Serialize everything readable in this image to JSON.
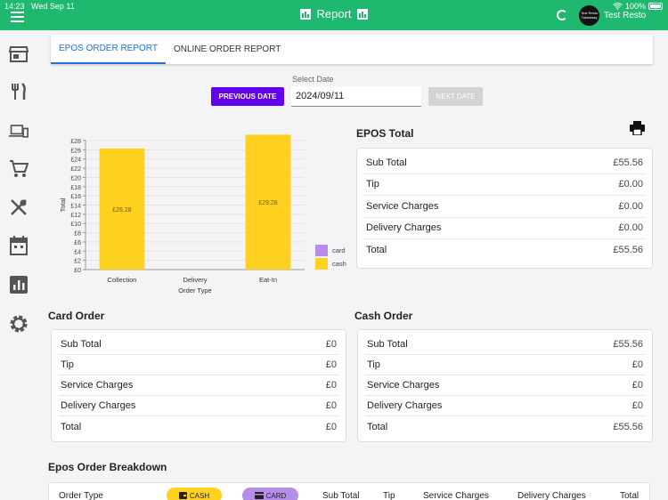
{
  "status_bar": {
    "time": "14:23",
    "date": "Wed Sep 11",
    "battery": "100%"
  },
  "header": {
    "title": "Report",
    "restaurant": "Test Resto",
    "avatar_text": "Test Resto Takeaway"
  },
  "sidebar": {
    "icons": [
      "store-icon",
      "utensils-icon",
      "devices-icon",
      "cart-icon",
      "dining-icon",
      "calendar-icon",
      "report-icon",
      "settings-icon"
    ]
  },
  "tabs": [
    {
      "label": "EPOS ORDER REPORT",
      "active": true
    },
    {
      "label": "ONLINE ORDER REPORT",
      "active": false
    }
  ],
  "date_picker": {
    "label": "Select Date",
    "value": "2024/09/11",
    "prev_label": "PREVIOUS DATE",
    "next_label": "NEXT DATE"
  },
  "chart_data": {
    "type": "bar",
    "categories": [
      "Collection",
      "Delivery",
      "Eat-In"
    ],
    "series": [
      {
        "name": "card",
        "values": [
          0,
          0,
          0
        ],
        "color": "#b48ee8"
      },
      {
        "name": "cash",
        "values": [
          26.28,
          0,
          29.28
        ],
        "color": "#ffd21f"
      }
    ],
    "data_labels": [
      "£26.28",
      "",
      "£29.28"
    ],
    "xlabel": "Order Type",
    "ylabel": "Total",
    "ylim": [
      0,
      28
    ],
    "y_ticks": [
      "£0",
      "£2",
      "£4",
      "£6",
      "£8",
      "£10",
      "£12",
      "£14",
      "£16",
      "£18",
      "£20",
      "£22",
      "£24",
      "£26",
      "£28"
    ],
    "grid": true,
    "legend": "right"
  },
  "epos_total": {
    "title": "EPOS Total",
    "rows": [
      {
        "label": "Sub Total",
        "value": "£55.56"
      },
      {
        "label": "Tip",
        "value": "£0.00"
      },
      {
        "label": "Service Charges",
        "value": "£0.00"
      },
      {
        "label": "Delivery Charges",
        "value": "£0.00"
      },
      {
        "label": "Total",
        "value": "£55.56"
      }
    ]
  },
  "card_order": {
    "title": "Card Order",
    "rows": [
      {
        "label": "Sub Total",
        "value": "£0"
      },
      {
        "label": "Tip",
        "value": "£0"
      },
      {
        "label": "Service Charges",
        "value": "£0"
      },
      {
        "label": "Delivery Charges",
        "value": "£0"
      },
      {
        "label": "Total",
        "value": "£0"
      }
    ]
  },
  "cash_order": {
    "title": "Cash Order",
    "rows": [
      {
        "label": "Sub Total",
        "value": "£55.56"
      },
      {
        "label": "Tip",
        "value": "£0"
      },
      {
        "label": "Service Charges",
        "value": "£0"
      },
      {
        "label": "Delivery Charges",
        "value": "£0"
      },
      {
        "label": "Total",
        "value": "£55.56"
      }
    ]
  },
  "breakdown": {
    "title": "Epos Order Breakdown",
    "headers": {
      "order_type": "Order Type",
      "cash": "CASH",
      "card": "CARD",
      "sub_total": "Sub Total",
      "tip": "Tip",
      "service": "Service Charges",
      "delivery": "Delivery Charges",
      "total": "Total"
    },
    "cash_color": "#ffd21f",
    "card_color": "#b48ee8"
  }
}
